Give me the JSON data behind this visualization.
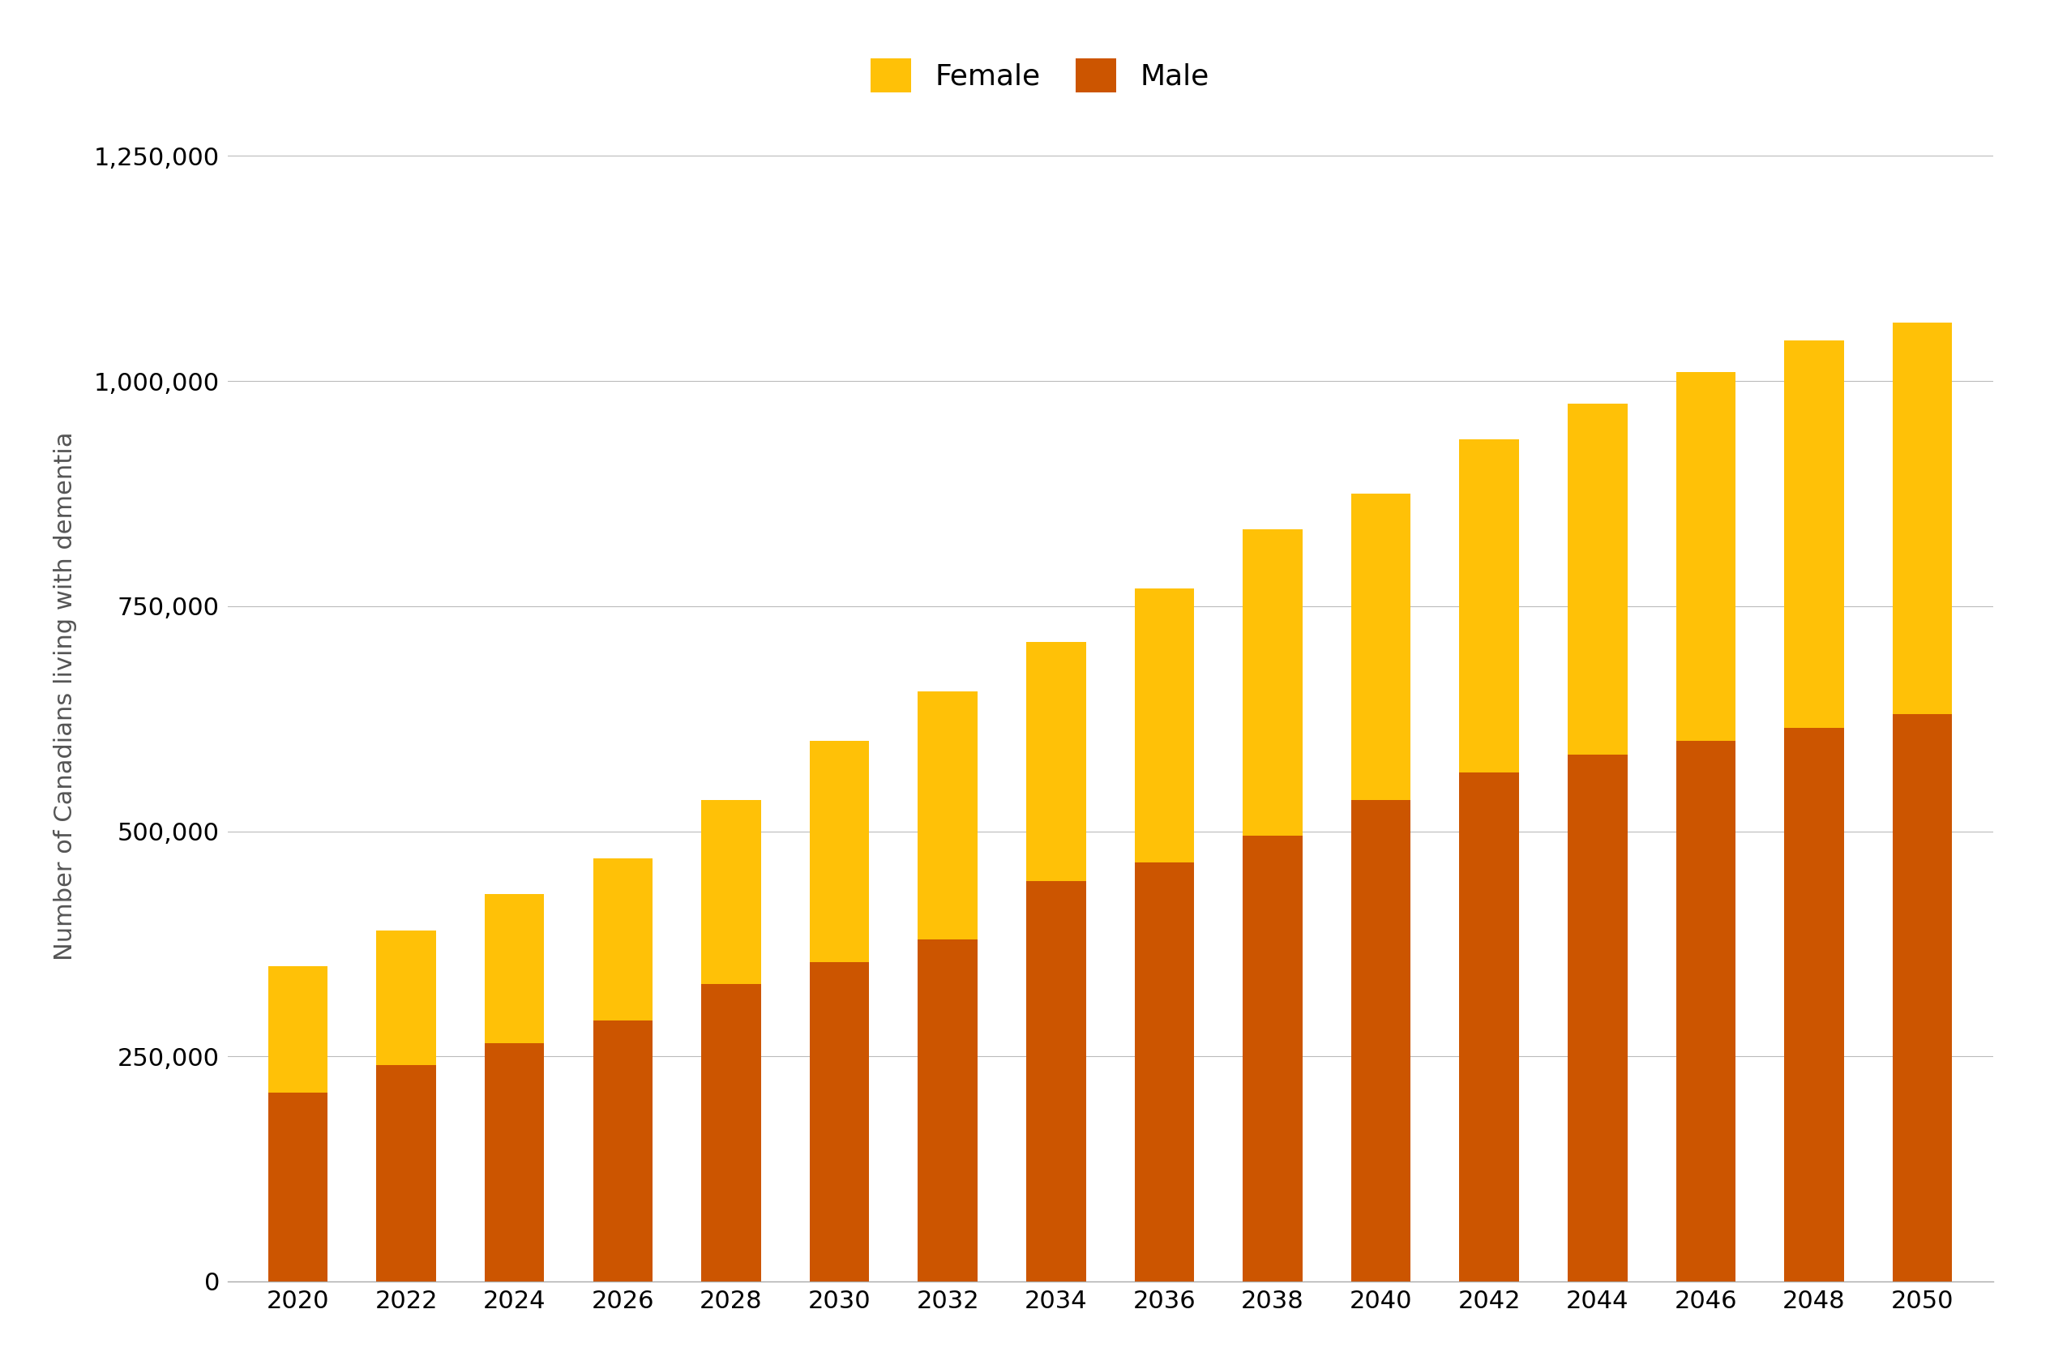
{
  "years": [
    2020,
    2022,
    2024,
    2026,
    2028,
    2030,
    2032,
    2034,
    2036,
    2038,
    2040,
    2042,
    2044,
    2046,
    2048,
    2050
  ],
  "female_total": [
    350000,
    390000,
    430000,
    470000,
    535000,
    600000,
    655000,
    710000,
    770000,
    835000,
    875000,
    935000,
    975000,
    1010000,
    1045000,
    1065000
  ],
  "male_total": [
    210000,
    240000,
    265000,
    290000,
    330000,
    355000,
    380000,
    445000,
    465000,
    495000,
    535000,
    565000,
    585000,
    600000,
    615000,
    630000
  ],
  "female_color": "#FFC107",
  "male_color": "#CC5500",
  "ylabel": "Number of Canadians living with dementia",
  "ylim": [
    0,
    1300000
  ],
  "yticks": [
    0,
    250000,
    500000,
    750000,
    1000000,
    1250000
  ],
  "legend_labels": [
    "Female",
    "Male"
  ],
  "bar_width": 0.55,
  "background_color": "#ffffff",
  "axis_arrow_color": "#29ABE2",
  "grid_color": "#bbbbbb"
}
